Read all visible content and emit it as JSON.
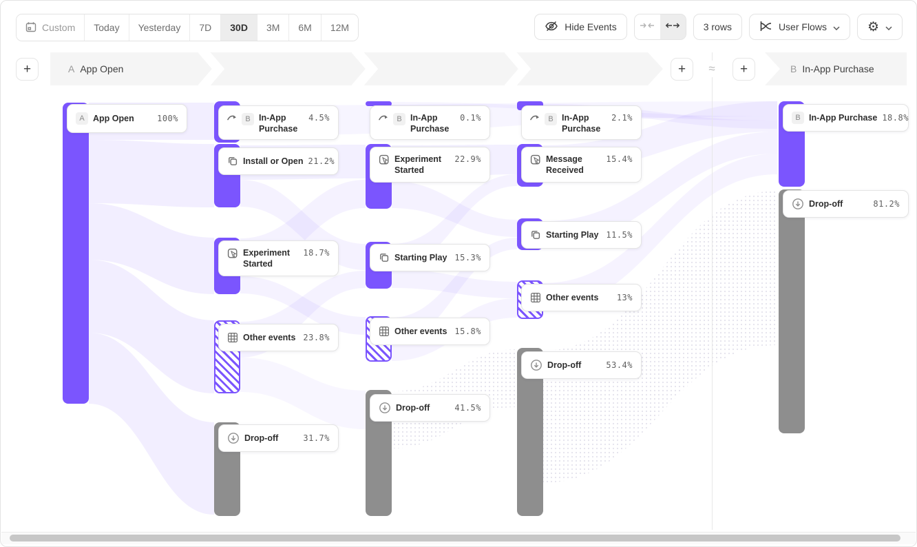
{
  "toolbar": {
    "date_buttons": [
      {
        "label": "Custom"
      },
      {
        "label": "Today"
      },
      {
        "label": "Yesterday"
      },
      {
        "label": "7D"
      },
      {
        "label": "30D"
      },
      {
        "label": "3M"
      },
      {
        "label": "6M"
      },
      {
        "label": "12M"
      }
    ],
    "selected_range": "30D",
    "hide_events_label": "Hide Events",
    "rows_label": "3 rows",
    "view_label": "User Flows"
  },
  "flow_header": {
    "start_letter": "A",
    "start_title": "App Open",
    "end_letter": "B",
    "end_title": "In-App Purchase",
    "approx_symbol": "≈",
    "add_step_label": "+"
  },
  "colors": {
    "accent": "#7B55FE",
    "gray_bar": "#8E8E8E"
  },
  "columns": [
    {
      "name": "step-1",
      "nodes": [
        {
          "badge": "A",
          "label": "App Open",
          "value": "100%",
          "style": "solid"
        }
      ]
    },
    {
      "name": "step-2",
      "nodes": [
        {
          "icon": "skip-arrow",
          "badge": "B",
          "label": "In-App Purchase",
          "value": "4.5%",
          "style": "solid"
        },
        {
          "icon": "copy",
          "label": "Install or Open",
          "value": "21.2%",
          "style": "solid"
        },
        {
          "icon": "experiment",
          "label": "Experiment Started",
          "value": "18.7%",
          "style": "solid"
        },
        {
          "icon": "grid",
          "label": "Other events",
          "value": "23.8%",
          "style": "hatched"
        },
        {
          "icon": "dropoff",
          "label": "Drop-off",
          "value": "31.7%",
          "style": "gray"
        }
      ]
    },
    {
      "name": "step-3",
      "nodes": [
        {
          "icon": "skip-arrow",
          "badge": "B",
          "label": "In-App Purchase",
          "value": "0.1%",
          "style": "solid"
        },
        {
          "icon": "experiment",
          "label": "Experiment Started",
          "value": "22.9%",
          "style": "solid"
        },
        {
          "icon": "copy",
          "label": "Starting Play",
          "value": "15.3%",
          "style": "solid"
        },
        {
          "icon": "grid",
          "label": "Other events",
          "value": "15.8%",
          "style": "hatched"
        },
        {
          "icon": "dropoff",
          "label": "Drop-off",
          "value": "41.5%",
          "style": "gray"
        }
      ]
    },
    {
      "name": "step-4",
      "nodes": [
        {
          "icon": "skip-arrow",
          "badge": "B",
          "label": "In-App Purchase",
          "value": "2.1%",
          "style": "solid"
        },
        {
          "icon": "experiment",
          "label": "Message Received",
          "value": "15.4%",
          "style": "solid"
        },
        {
          "icon": "copy",
          "label": "Starting Play",
          "value": "11.5%",
          "style": "solid"
        },
        {
          "icon": "grid",
          "label": "Other events",
          "value": "13%",
          "style": "hatched"
        },
        {
          "icon": "dropoff",
          "label": "Drop-off",
          "value": "53.4%",
          "style": "gray"
        }
      ]
    },
    {
      "name": "target",
      "nodes": [
        {
          "badge": "B",
          "label": "In-App Purchase",
          "value": "18.8%",
          "style": "solid"
        },
        {
          "icon": "dropoff",
          "label": "Drop-off",
          "value": "81.2%",
          "style": "gray"
        }
      ]
    }
  ]
}
